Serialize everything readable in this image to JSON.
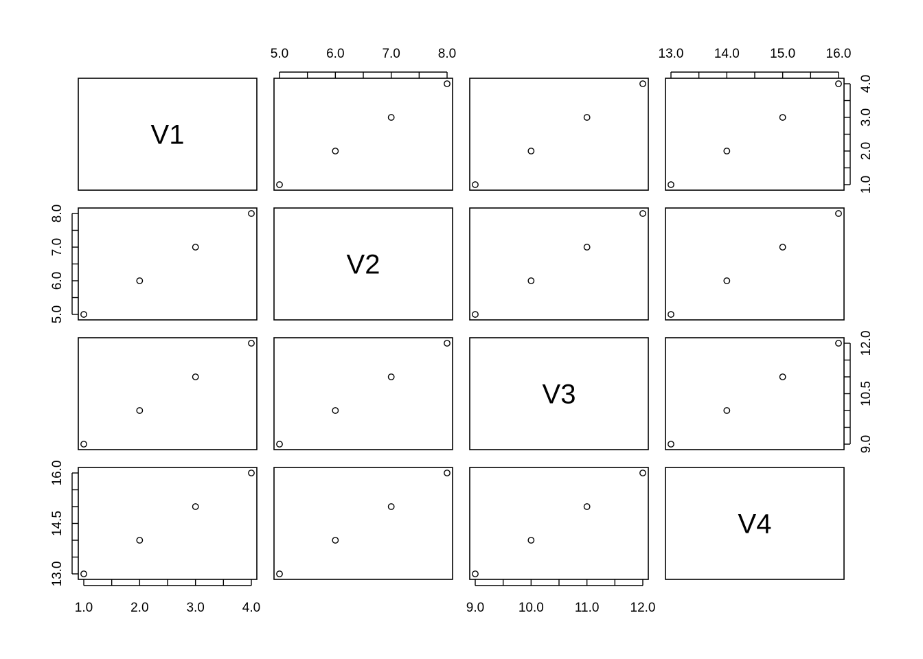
{
  "chart_data": {
    "type": "scatter",
    "variables": [
      "V1",
      "V2",
      "V3",
      "V4"
    ],
    "observations": {
      "V1": [
        1,
        2,
        3,
        4
      ],
      "V2": [
        5,
        6,
        7,
        8
      ],
      "V3": [
        9,
        10,
        11,
        12
      ],
      "V4": [
        13,
        14,
        15,
        16
      ]
    },
    "axes": [
      {
        "variable": "V1",
        "ticks": [
          1.0,
          1.5,
          2.0,
          2.5,
          3.0,
          3.5,
          4.0
        ],
        "labels": [
          "1.0",
          "2.0",
          "3.0",
          "4.0"
        ],
        "label_values": [
          1.0,
          2.0,
          3.0,
          4.0
        ],
        "range": [
          1,
          4
        ]
      },
      {
        "variable": "V2",
        "ticks": [
          5.0,
          5.5,
          6.0,
          6.5,
          7.0,
          7.5,
          8.0
        ],
        "labels": [
          "5.0",
          "6.0",
          "7.0",
          "8.0"
        ],
        "label_values": [
          5.0,
          6.0,
          7.0,
          8.0
        ],
        "range": [
          5,
          8
        ]
      },
      {
        "variable": "V3",
        "ticks": [
          9.0,
          9.5,
          10.0,
          10.5,
          11.0,
          11.5,
          12.0
        ],
        "labels": [
          "9.0",
          "10.0",
          "11.0",
          "12.0"
        ],
        "label_values": [
          9.0,
          10.0,
          11.0,
          12.0
        ],
        "range": [
          9,
          12
        ]
      },
      {
        "variable": "V4",
        "ticks": [
          13.0,
          13.5,
          14.0,
          14.5,
          15.0,
          15.5,
          16.0
        ],
        "labels": [
          "13.0",
          "14.0",
          "15.0",
          "16.0"
        ],
        "label_values": [
          13.0,
          14.0,
          15.0,
          16.0
        ],
        "range": [
          13,
          16
        ]
      }
    ],
    "row_axes": [
      {
        "variable": "V1",
        "ticks": [
          1.0,
          1.5,
          2.0,
          2.5,
          3.0,
          3.5,
          4.0
        ],
        "labels": [
          "1.0",
          "2.0",
          "3.0",
          "4.0"
        ],
        "label_values": [
          1.0,
          2.0,
          3.0,
          4.0
        ]
      },
      {
        "variable": "V2",
        "ticks": [
          5.0,
          5.5,
          6.0,
          6.5,
          7.0,
          7.5,
          8.0
        ],
        "labels": [
          "5.0",
          "6.0",
          "7.0",
          "8.0"
        ],
        "label_values": [
          5.0,
          6.0,
          7.0,
          8.0
        ]
      },
      {
        "variable": "V3",
        "ticks": [
          9.0,
          9.5,
          10.0,
          10.5,
          11.0,
          11.5,
          12.0
        ],
        "labels": [
          "9.0",
          "10.5",
          "12.0"
        ],
        "label_values": [
          9.0,
          10.5,
          12.0
        ]
      },
      {
        "variable": "V4",
        "ticks": [
          13.0,
          13.5,
          14.0,
          14.5,
          15.0,
          15.5,
          16.0
        ],
        "labels": [
          "13.0",
          "14.5",
          "16.0"
        ],
        "label_values": [
          13.0,
          14.5,
          16.0
        ]
      }
    ],
    "grid": false,
    "legend": "none",
    "title": "",
    "xlabel": "",
    "ylabel": ""
  }
}
